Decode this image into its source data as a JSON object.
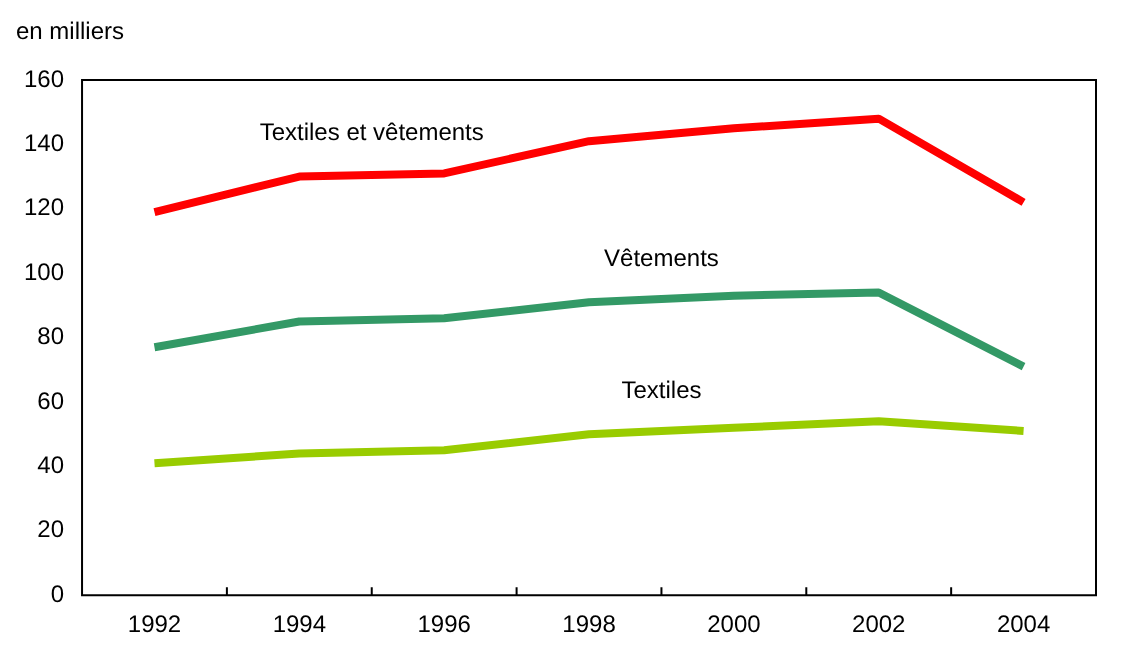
{
  "chart_data": {
    "type": "line",
    "ylabel": "en milliers",
    "categories": [
      "1992",
      "1994",
      "1996",
      "1998",
      "2000",
      "2002",
      "2004"
    ],
    "series": [
      {
        "name": "Textiles et vêtements",
        "color": "#ff0000",
        "values": [
          119,
          130,
          131,
          141,
          145,
          148,
          122
        ]
      },
      {
        "name": "Vêtements",
        "color": "#339966",
        "values": [
          77,
          85,
          86,
          91,
          93,
          94,
          71
        ]
      },
      {
        "name": "Textiles",
        "color": "#99cc00",
        "values": [
          41,
          44,
          45,
          50,
          52,
          54,
          51
        ]
      }
    ],
    "ylim": [
      0,
      160
    ],
    "yticks": [
      0,
      20,
      40,
      60,
      80,
      100,
      120,
      140,
      160
    ],
    "grid": false,
    "legend": false,
    "marker": "none",
    "line_style": "solid"
  }
}
